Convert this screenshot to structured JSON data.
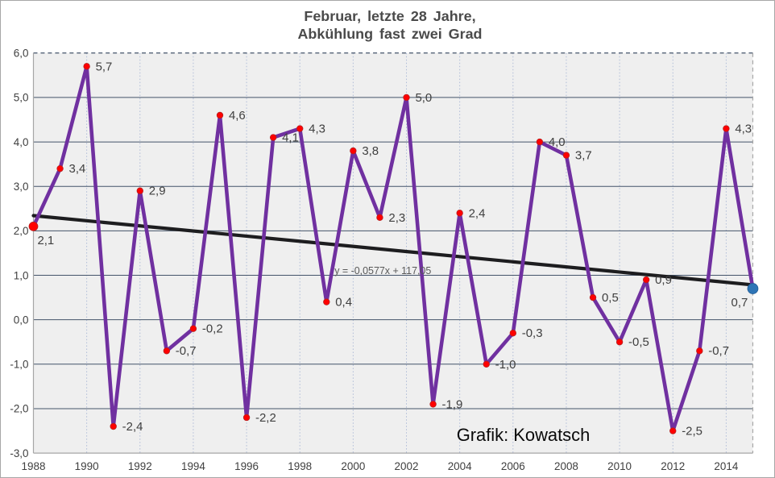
{
  "title": {
    "line1": "Februar, letzte 28 Jahre,",
    "line2": "Abkühlung fast zwei Grad"
  },
  "credit": "Grafik: Kowatsch",
  "colors": {
    "series": "#7030A0",
    "marker": "#FF0000",
    "marker_edge": "#B22222",
    "last_marker": "#2E75B6",
    "last_marker_edge": "#1F5C96",
    "trend": "#1d1d1f",
    "hgrid": "#44546A",
    "vgrid": "#AEBBD7",
    "axis_light": "#A6A6A6",
    "plot_bg": "#EFEFEF",
    "label_text": "#3f3f3f"
  },
  "chart_data": {
    "type": "line",
    "title": "Februar, letzte 28 Jahre, Abkühlung fast zwei Grad",
    "x": [
      1988,
      1989,
      1990,
      1991,
      1992,
      1993,
      1994,
      1995,
      1996,
      1997,
      1998,
      1999,
      2000,
      2001,
      2002,
      2003,
      2004,
      2005,
      2006,
      2007,
      2008,
      2009,
      2010,
      2011,
      2012,
      2013,
      2014,
      2015
    ],
    "values": [
      2.1,
      3.4,
      5.7,
      -2.4,
      2.9,
      -0.7,
      -0.2,
      4.6,
      -2.2,
      4.1,
      4.3,
      0.4,
      3.8,
      2.3,
      5.0,
      -1.9,
      2.4,
      -1.0,
      -0.3,
      4.0,
      3.7,
      0.5,
      -0.5,
      0.9,
      -2.5,
      -0.7,
      4.3,
      0.7
    ],
    "point_labels": [
      "2,1",
      "3,4",
      "5,7",
      "-2,4",
      "2,9",
      "-0,7",
      "-0,2",
      "4,6",
      "-2,2",
      "4,1",
      "4,3",
      "0,4",
      "3,8",
      "2,3",
      "5,0",
      "-1,9",
      "2,4",
      "-1,0",
      "-0,3",
      "4,0",
      "3,7",
      "0,5",
      "-0,5",
      "0,9",
      "-2,5",
      "-0,7",
      "4,3",
      "0,7"
    ],
    "label_offsets": {
      "0": [
        5,
        22
      ],
      "27": [
        -27,
        22
      ]
    },
    "ylim": [
      -3,
      6
    ],
    "ytick_labels": [
      "6,0",
      "5,0",
      "4,0",
      "3,0",
      "2,0",
      "1,0",
      "0,0",
      "-1,0",
      "-2,0",
      "-3,0"
    ],
    "ytick_values": [
      6,
      5,
      4,
      3,
      2,
      1,
      0,
      -1,
      -2,
      -3
    ],
    "xtick_labels": [
      "1988",
      "1990",
      "1992",
      "1994",
      "1996",
      "1998",
      "2000",
      "2002",
      "2004",
      "2006",
      "2008",
      "2010",
      "2012",
      "2014"
    ],
    "xtick_values": [
      1988,
      1990,
      1992,
      1994,
      1996,
      1998,
      2000,
      2002,
      2004,
      2006,
      2008,
      2010,
      2012,
      2014
    ],
    "grid": true,
    "legend": "none",
    "trendline": {
      "label": "y = -0,0577x + 117,05",
      "slope": -0.0577,
      "intercept": 117.05
    }
  }
}
